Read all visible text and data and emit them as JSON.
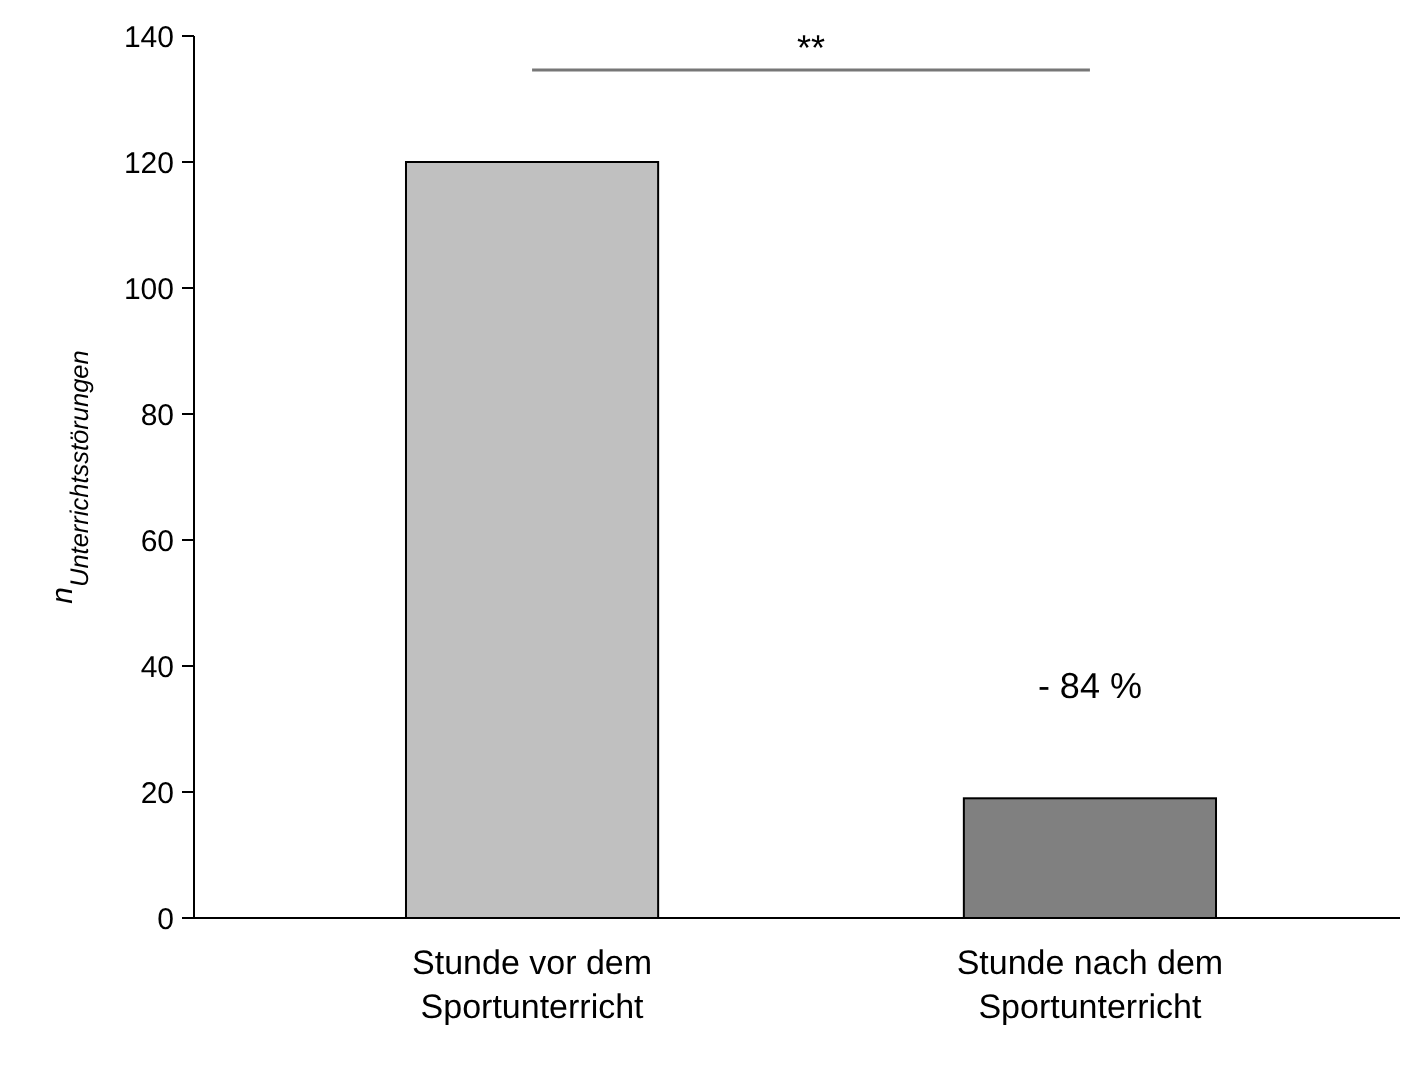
{
  "chart_data": {
    "type": "bar",
    "ylabel": "n$_{Unterrichtsstörungen}$",
    "categories": [
      "Stunde vor dem Sportunterricht",
      "Stunde nach dem Sportunterricht"
    ],
    "values": [
      120,
      19
    ],
    "colors": [
      "#c0c0c0",
      "#808080"
    ],
    "ylim": [
      0,
      140
    ],
    "yticks": [
      0,
      20,
      40,
      60,
      80,
      100,
      120,
      140
    ],
    "grid": false,
    "annotations": [
      "**",
      "- 84 %"
    ]
  }
}
